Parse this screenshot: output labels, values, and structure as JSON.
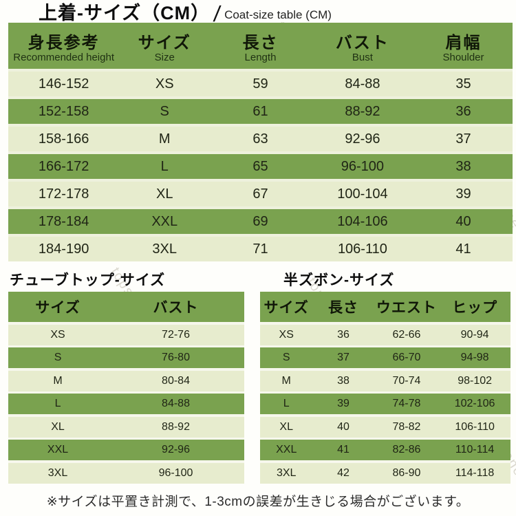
{
  "page": {
    "title_jp": "上着-サイズ（CM）",
    "title_divider": "/",
    "title_en": "Coat-size table (CM)",
    "footnote": "※サイズは平置き計測で、1-3cmの誤差が生きじる場合がございます。",
    "watermark": "topstyleone"
  },
  "colors": {
    "header_green": "#7aa24f",
    "row_light": "#e7ecce",
    "row_dark": "#7aa24f",
    "background": "#fefefb"
  },
  "coat_table": {
    "headers": [
      {
        "jp": "身長参考",
        "en": "Recommended height"
      },
      {
        "jp": "サイズ",
        "en": "Size"
      },
      {
        "jp": "長さ",
        "en": "Length"
      },
      {
        "jp": "バスト",
        "en": "Bust"
      },
      {
        "jp": "肩幅",
        "en": "Shoulder"
      }
    ],
    "rows": [
      [
        "146-152",
        "XS",
        "59",
        "84-88",
        "35"
      ],
      [
        "152-158",
        "S",
        "61",
        "88-92",
        "36"
      ],
      [
        "158-166",
        "M",
        "63",
        "92-96",
        "37"
      ],
      [
        "166-172",
        "L",
        "65",
        "96-100",
        "38"
      ],
      [
        "172-178",
        "XL",
        "67",
        "100-104",
        "39"
      ],
      [
        "178-184",
        "XXL",
        "69",
        "104-106",
        "40"
      ],
      [
        "184-190",
        "3XL",
        "71",
        "106-110",
        "41"
      ]
    ]
  },
  "tubetop_table": {
    "title": "チューブトップ-サイズ",
    "headers": [
      "サイズ",
      "バスト"
    ],
    "rows": [
      [
        "XS",
        "72-76"
      ],
      [
        "S",
        "76-80"
      ],
      [
        "M",
        "80-84"
      ],
      [
        "L",
        "84-88"
      ],
      [
        "XL",
        "88-92"
      ],
      [
        "XXL",
        "92-96"
      ],
      [
        "3XL",
        "96-100"
      ]
    ]
  },
  "shorts_table": {
    "title": "半ズボン-サイズ",
    "headers": [
      "サイズ",
      "長さ",
      "ウエスト",
      "ヒップ"
    ],
    "rows": [
      [
        "XS",
        "36",
        "62-66",
        "90-94"
      ],
      [
        "S",
        "37",
        "66-70",
        "94-98"
      ],
      [
        "M",
        "38",
        "70-74",
        "98-102"
      ],
      [
        "L",
        "39",
        "74-78",
        "102-106"
      ],
      [
        "XL",
        "40",
        "78-82",
        "106-110"
      ],
      [
        "XXL",
        "41",
        "82-86",
        "110-114"
      ],
      [
        "3XL",
        "42",
        "86-90",
        "114-118"
      ]
    ]
  }
}
